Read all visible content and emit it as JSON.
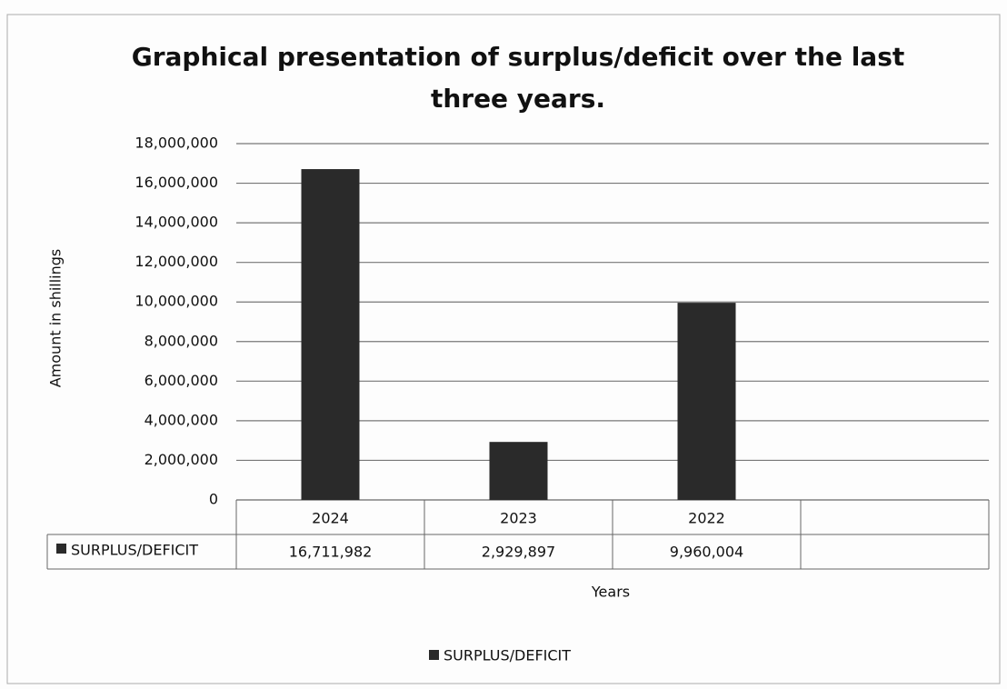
{
  "chart_data": {
    "type": "bar",
    "title": "Graphical presentation of surplus/deficit over the last three years.",
    "y_label": "Amount in  shillings",
    "x_label": "Years",
    "categories": [
      "2024",
      "2023",
      "2022",
      null
    ],
    "series": [
      {
        "name": "SURPLUS/DEFICIT",
        "color": "#2a2a2a",
        "values": [
          16711982,
          2929897,
          9960004,
          null
        ],
        "value_labels": [
          "16,711,982",
          "2,929,897",
          "9,960,004",
          null
        ]
      }
    ],
    "ylim": [
      0,
      18000000
    ],
    "yticks": [
      0,
      {
        "value": 2000000,
        "label": "2,000,000"
      },
      {
        "value": 4000000,
        "label": "4,000,000"
      },
      {
        "value": 6000000,
        "label": "6,000,000"
      },
      {
        "value": 8000000,
        "label": "8,000,000"
      },
      {
        "value": 10000000,
        "label": "10,000,000"
      },
      {
        "value": 12000000,
        "label": "12,000,000"
      },
      {
        "value": 14000000,
        "label": "14,000,000"
      },
      {
        "value": 16000000,
        "label": "16,000,000"
      },
      {
        "value": 18000000,
        "label": "18,000,000"
      }
    ],
    "grid": true,
    "legend": "bottom"
  }
}
